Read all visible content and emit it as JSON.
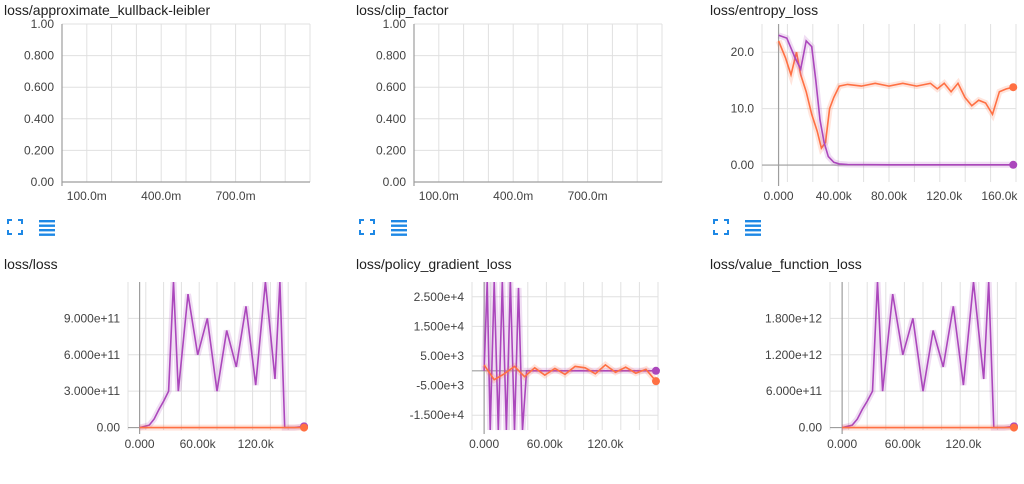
{
  "toolbar": {
    "expand_icon": "fullscreen-icon",
    "data_icon": "list-icon"
  },
  "colors": {
    "orange": "#ff7043",
    "purple": "#ab47bc",
    "purple_light": "#e6cbe9",
    "orange_light": "#ffd7c9",
    "grid": "#e0e0e0",
    "axis": "#9e9e9e",
    "icon": "#1e88e5"
  },
  "chart_data": [
    {
      "type": "line",
      "title": "loss/approximate_kullback-leibler",
      "yticks": [
        "1.00",
        "0.800",
        "0.600",
        "0.400",
        "0.200",
        "0.00"
      ],
      "xticks": [
        "100.0m",
        "400.0m",
        "700.0m"
      ],
      "ylim": [
        0,
        1
      ],
      "xlim": [
        0,
        1
      ],
      "series": []
    },
    {
      "type": "line",
      "title": "loss/clip_factor",
      "yticks": [
        "1.00",
        "0.800",
        "0.600",
        "0.400",
        "0.200",
        "0.00"
      ],
      "xticks": [
        "100.0m",
        "400.0m",
        "700.0m"
      ],
      "ylim": [
        0,
        1
      ],
      "xlim": [
        0,
        1
      ],
      "series": []
    },
    {
      "type": "line",
      "title": "loss/entropy_loss",
      "yticks": [
        "20.0",
        "10.0",
        "0.00"
      ],
      "xticks": [
        "0.000",
        "40.00k",
        "80.00k",
        "120.0k",
        "160.0k"
      ],
      "ylim": [
        -3,
        25
      ],
      "xlim": [
        -12000,
        172000
      ],
      "series": [
        {
          "color": "#ff7043",
          "x": [
            0,
            5000,
            9000,
            13000,
            16000,
            20000,
            24000,
            28000,
            31000,
            34000,
            37000,
            40000,
            44000,
            50000,
            60000,
            70000,
            80000,
            90000,
            100000,
            110000,
            115000,
            120000,
            125000,
            130000,
            135000,
            140000,
            145000,
            150000,
            155000,
            160000,
            165000,
            170000
          ],
          "y": [
            22,
            19,
            16,
            20,
            16,
            13,
            9,
            6,
            3,
            4,
            10,
            12,
            14,
            14.3,
            14,
            14.5,
            14,
            14.5,
            14,
            14.5,
            13.5,
            14.5,
            13,
            14.5,
            12,
            10.5,
            11.5,
            11,
            9,
            13,
            13.5,
            13.8
          ]
        },
        {
          "color": "#ab47bc",
          "x": [
            0,
            6000,
            12000,
            16000,
            20000,
            24000,
            27000,
            30000,
            33000,
            36000,
            40000,
            44000,
            50000,
            80000,
            120000,
            160000,
            170000
          ],
          "y": [
            23,
            22.5,
            19,
            17,
            22,
            21,
            15,
            8,
            4,
            1.5,
            0.5,
            0.2,
            0.1,
            0.05,
            0.05,
            0.05,
            0.05
          ]
        }
      ]
    },
    {
      "type": "line",
      "title": "loss/loss",
      "yticks": [
        "9.000e+11",
        "6.000e+11",
        "3.000e+11",
        "0.00"
      ],
      "xticks": [
        "0.000",
        "60.00k",
        "120.0k"
      ],
      "ylim": [
        -20000000000.0,
        1200000000000.0
      ],
      "xlim": [
        -12000,
        172000
      ],
      "series": [
        {
          "color": "#ab47bc",
          "x": [
            0,
            10000,
            15000,
            20000,
            25000,
            30000,
            35000,
            40000,
            50000,
            60000,
            70000,
            80000,
            90000,
            100000,
            110000,
            120000,
            130000,
            140000,
            145000,
            150000,
            160000,
            170000
          ],
          "y": [
            0,
            20000000000.0,
            70000000000.0,
            150000000000.0,
            220000000000.0,
            300000000000.0,
            1200000000000.0,
            300000000000.0,
            1100000000000.0,
            600000000000.0,
            900000000000.0,
            300000000000.0,
            800000000000.0,
            500000000000.0,
            1000000000000.0,
            350000000000.0,
            1200000000000.0,
            400000000000.0,
            1200000000000.0,
            0,
            0,
            10000000000.0
          ]
        },
        {
          "color": "#ff7043",
          "x": [
            0,
            170000
          ],
          "y": [
            0,
            0
          ]
        }
      ]
    },
    {
      "type": "line",
      "title": "loss/policy_gradient_loss",
      "yticks": [
        "2.500e+4",
        "1.500e+4",
        "5.00e+3",
        "-5.00e+3",
        "-1.500e+4"
      ],
      "xticks": [
        "0.000",
        "60.00k",
        "120.0k"
      ],
      "ylim": [
        -20000,
        30000
      ],
      "xlim": [
        -12000,
        172000
      ],
      "series": [
        {
          "color": "#ab47bc",
          "x": [
            0,
            3000,
            6000,
            10000,
            14000,
            18000,
            22000,
            26000,
            30000,
            34000,
            38000,
            42000,
            46000,
            170000
          ],
          "y": [
            0,
            30000,
            -20000,
            30000,
            -20000,
            30000,
            -20000,
            30000,
            -20000,
            28000,
            -20000,
            0,
            0,
            0
          ]
        },
        {
          "color": "#ff7043",
          "x": [
            0,
            10000,
            20000,
            30000,
            40000,
            50000,
            60000,
            70000,
            80000,
            90000,
            100000,
            110000,
            120000,
            130000,
            140000,
            150000,
            160000,
            170000
          ],
          "y": [
            2000,
            -3000,
            -1000,
            1500,
            -2000,
            1000,
            -1500,
            800,
            -1200,
            1500,
            1000,
            -1000,
            2000,
            -500,
            1200,
            -800,
            500,
            -3500
          ]
        }
      ]
    },
    {
      "type": "line",
      "title": "loss/value_function_loss",
      "yticks": [
        "1.800e+12",
        "1.200e+12",
        "6.000e+11",
        "0.00"
      ],
      "xticks": [
        "0.000",
        "60.00k",
        "120.0k"
      ],
      "ylim": [
        -40000000000.0,
        2400000000000.0
      ],
      "xlim": [
        -12000,
        172000
      ],
      "series": [
        {
          "color": "#ab47bc",
          "x": [
            0,
            10000,
            15000,
            20000,
            25000,
            30000,
            35000,
            40000,
            50000,
            60000,
            70000,
            80000,
            90000,
            100000,
            110000,
            120000,
            130000,
            140000,
            145000,
            150000,
            160000,
            170000
          ],
          "y": [
            0,
            40000000000.0,
            140000000000.0,
            300000000000.0,
            440000000000.0,
            600000000000.0,
            2400000000000.0,
            600000000000.0,
            2200000000000.0,
            1200000000000.0,
            1800000000000.0,
            600000000000.0,
            1600000000000.0,
            1000000000000.0,
            2000000000000.0,
            700000000000.0,
            2400000000000.0,
            800000000000.0,
            2400000000000.0,
            0,
            0,
            20000000000.0
          ]
        },
        {
          "color": "#ff7043",
          "x": [
            0,
            170000
          ],
          "y": [
            0,
            0
          ]
        }
      ]
    }
  ]
}
